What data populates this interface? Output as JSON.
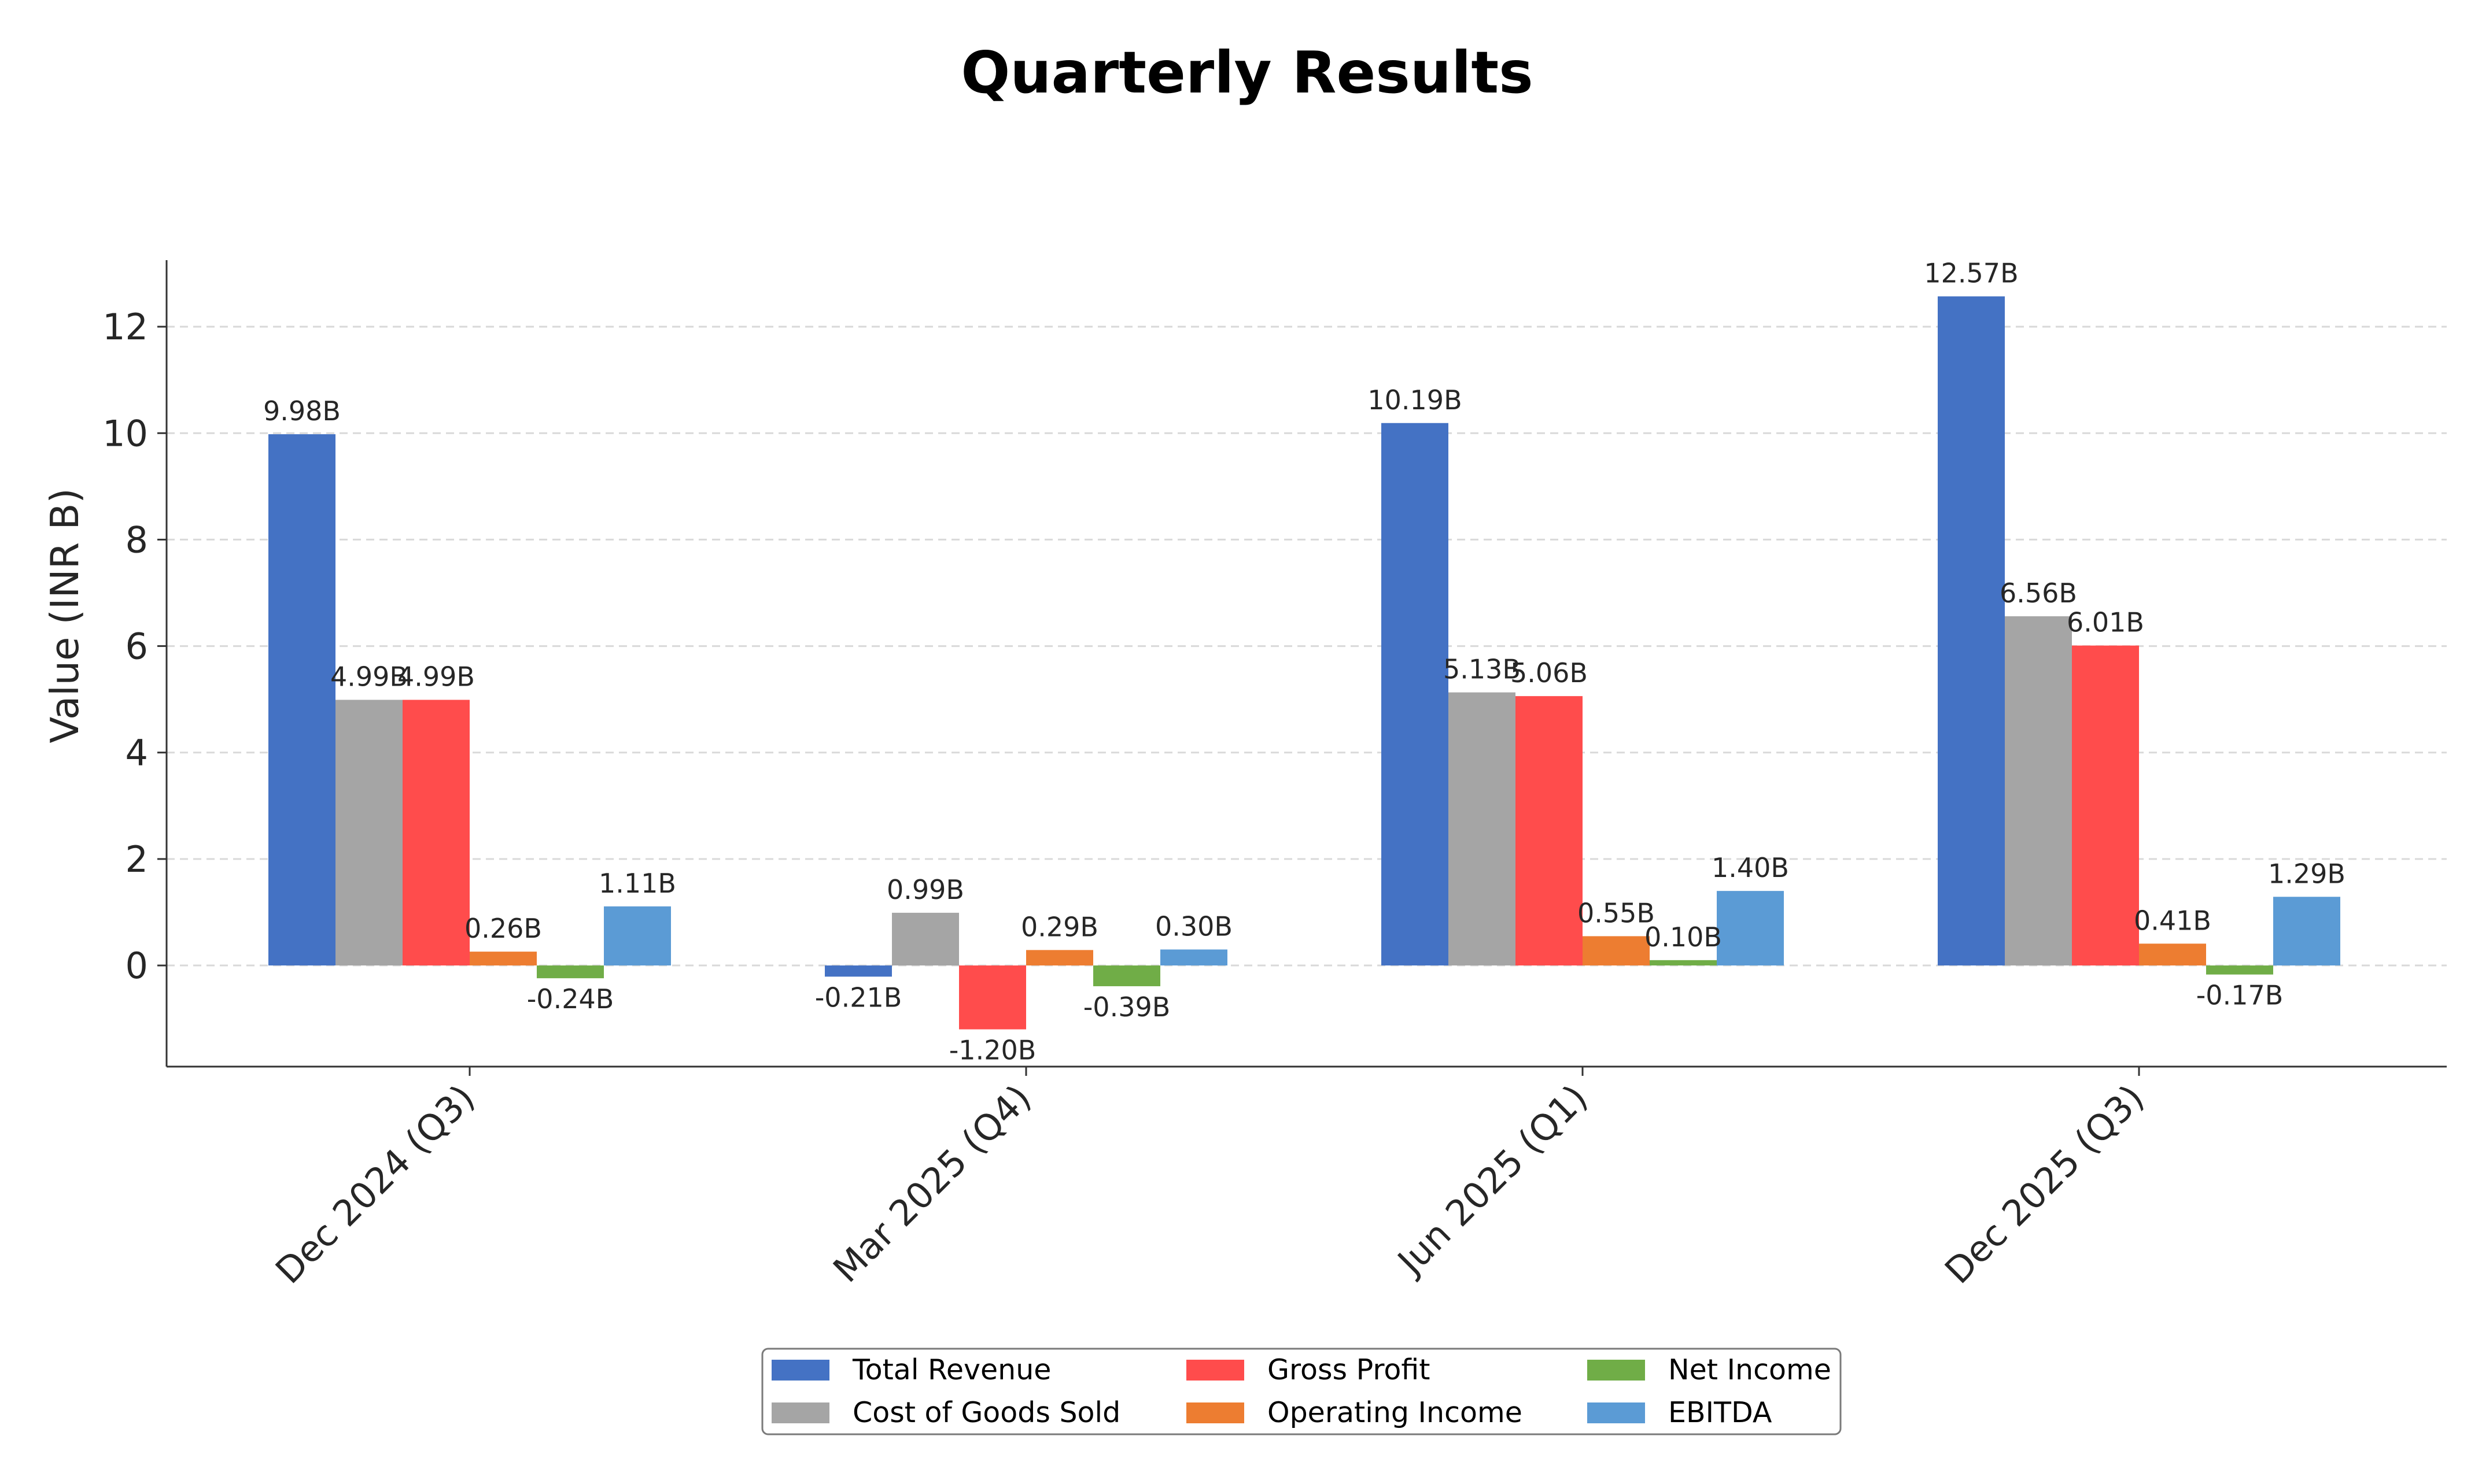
{
  "chart_data": {
    "type": "bar",
    "title": "Quarterly Results",
    "xlabel": "",
    "ylabel": "Value (INR B)",
    "ylim": [
      -1.9,
      13.25
    ],
    "yticks": [
      0,
      2,
      4,
      6,
      8,
      10,
      12
    ],
    "grid": true,
    "legend_position": "bottom-center",
    "categories": [
      "Dec 2024 (Q3)",
      "Mar 2025 (Q4)",
      "Jun 2025 (Q1)",
      "Dec 2025 (Q3)"
    ],
    "series": [
      {
        "name": "Total Revenue",
        "color": "#4472c4",
        "values": [
          9.98,
          -0.21,
          10.19,
          12.57
        ],
        "labels": [
          "9.98B",
          "-0.21B",
          "10.19B",
          "12.57B"
        ]
      },
      {
        "name": "Cost of Goods Sold",
        "color": "#a5a5a5",
        "values": [
          4.99,
          0.99,
          5.13,
          6.56
        ],
        "labels": [
          "4.99B",
          "0.99B",
          "5.13B",
          "6.56B"
        ]
      },
      {
        "name": "Gross Profit",
        "color": "#ff4c4c",
        "values": [
          4.99,
          -1.2,
          5.06,
          6.01
        ],
        "labels": [
          "4.99B",
          "-1.20B",
          "5.06B",
          "6.01B"
        ]
      },
      {
        "name": "Operating Income",
        "color": "#ed7d31",
        "values": [
          0.26,
          0.29,
          0.55,
          0.41
        ],
        "labels": [
          "0.26B",
          "0.29B",
          "0.55B",
          "0.41B"
        ]
      },
      {
        "name": "Net Income",
        "color": "#70ad47",
        "values": [
          -0.24,
          -0.39,
          0.1,
          -0.17
        ],
        "labels": [
          "-0.24B",
          "-0.39B",
          "0.10B",
          "-0.17B"
        ]
      },
      {
        "name": "EBITDA",
        "color": "#5b9bd5",
        "values": [
          1.11,
          0.3,
          1.4,
          1.29
        ],
        "labels": [
          "1.11B",
          "0.30B",
          "1.40B",
          "1.29B"
        ]
      }
    ]
  }
}
